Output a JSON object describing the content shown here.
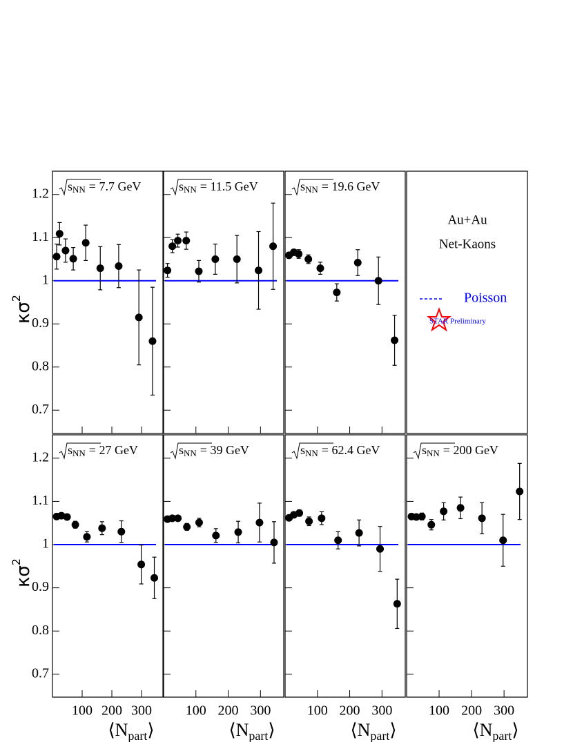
{
  "chart_data": [
    {
      "type": "scatter",
      "title": {
        "prefix": "s",
        "sub": "NN",
        "text": "= 7.7 GeV"
      },
      "ylabel": {
        "text": "κσ",
        "sup": "2"
      },
      "x": [
        14,
        24,
        44,
        70,
        112,
        161,
        223,
        291,
        337
      ],
      "values": [
        1.056,
        1.109,
        1.07,
        1.051,
        1.088,
        1.029,
        1.034,
        0.915,
        0.86
      ],
      "errors": [
        0.029,
        0.026,
        0.027,
        0.026,
        0.041,
        0.05,
        0.05,
        0.11,
        0.125
      ],
      "color": "#000000",
      "reference": 1,
      "reference_color": "#0000ff",
      "xlim": [
        0,
        372
      ],
      "ylim": [
        0.646,
        1.254
      ],
      "xticks": [
        100,
        200,
        300
      ],
      "yticks": [
        0.7,
        0.8,
        0.9,
        1,
        1.1,
        1.2
      ],
      "show_xticklabels": false,
      "show_yticklabels": true
    },
    {
      "type": "scatter",
      "title": {
        "prefix": "s",
        "sub": "NN",
        "text": "= 11.5 GeV"
      },
      "x": [
        12,
        27,
        44,
        70,
        109,
        160,
        227,
        294,
        339
      ],
      "values": [
        1.024,
        1.08,
        1.093,
        1.093,
        1.022,
        1.05,
        1.05,
        1.024,
        1.08
      ],
      "errors": [
        0.016,
        0.015,
        0.015,
        0.02,
        0.025,
        0.035,
        0.055,
        0.09,
        0.1
      ],
      "color": "#000000",
      "reference": 1,
      "reference_color": "#0000ff",
      "xlim": [
        0,
        372
      ],
      "ylim": [
        0.646,
        1.254
      ],
      "xticks": [
        100,
        200,
        300
      ],
      "yticks": [
        0.7,
        0.8,
        0.9,
        1,
        1.1,
        1.2
      ],
      "show_xticklabels": false,
      "show_yticklabels": false
    },
    {
      "type": "scatter",
      "title": {
        "prefix": "s",
        "sub": "NN",
        "text": "= 19.6 GeV"
      },
      "x": [
        12,
        27,
        42,
        72,
        109,
        160,
        225,
        289,
        339
      ],
      "values": [
        1.059,
        1.066,
        1.062,
        1.05,
        1.029,
        0.973,
        1.042,
        1.0,
        0.862
      ],
      "errors": [
        0.005,
        0.005,
        0.01,
        0.01,
        0.014,
        0.02,
        0.03,
        0.055,
        0.058
      ],
      "color": "#000000",
      "reference": 1,
      "reference_color": "#0000ff",
      "xlim": [
        0,
        372
      ],
      "ylim": [
        0.646,
        1.254
      ],
      "xticks": [
        100,
        200,
        300
      ],
      "yticks": [
        0.7,
        0.8,
        0.9,
        1,
        1.1,
        1.2
      ],
      "show_xticklabels": false,
      "show_yticklabels": false
    },
    {
      "type": "scatter",
      "title": {
        "prefix": "s",
        "sub": "NN",
        "text": "= 27 GeV"
      },
      "ylabel": {
        "text": "κσ",
        "sup": "2"
      },
      "xlabel": {
        "open": "⟨",
        "text": "N",
        "sub": "part",
        "close": "⟩"
      },
      "x": [
        14,
        30,
        49,
        77,
        116,
        167,
        232,
        299,
        343
      ],
      "values": [
        1.065,
        1.067,
        1.064,
        1.046,
        1.018,
        1.038,
        1.03,
        0.954,
        0.923
      ],
      "errors": [
        0.004,
        0.004,
        0.004,
        0.008,
        0.012,
        0.015,
        0.025,
        0.045,
        0.048
      ],
      "color": "#000000",
      "reference": 1,
      "reference_color": "#0000ff",
      "xlim": [
        0,
        372
      ],
      "ylim": [
        0.647,
        1.254
      ],
      "xticks": [
        100,
        200,
        300
      ],
      "yticks": [
        0.7,
        0.8,
        0.9,
        1,
        1.1,
        1.2
      ],
      "show_xticklabels": true,
      "show_yticklabels": true
    },
    {
      "type": "scatter",
      "title": {
        "prefix": "s",
        "sub": "NN",
        "text": "= 39 GeV"
      },
      "xlabel": {
        "open": "⟨",
        "text": "N",
        "sub": "part",
        "close": "⟩"
      },
      "x": [
        12,
        27,
        44,
        72,
        110,
        162,
        231,
        297,
        342
      ],
      "values": [
        1.059,
        1.061,
        1.061,
        1.041,
        1.051,
        1.021,
        1.029,
        1.051,
        1.005
      ],
      "errors": [
        0.004,
        0.004,
        0.004,
        0.008,
        0.01,
        0.016,
        0.025,
        0.045,
        0.048
      ],
      "color": "#000000",
      "reference": 1,
      "reference_color": "#0000ff",
      "xlim": [
        0,
        372
      ],
      "ylim": [
        0.647,
        1.254
      ],
      "xticks": [
        100,
        200,
        300
      ],
      "yticks": [
        0.7,
        0.8,
        0.9,
        1,
        1.1,
        1.2
      ],
      "show_xticklabels": true,
      "show_yticklabels": false
    },
    {
      "type": "scatter",
      "title": {
        "prefix": "s",
        "sub": "NN",
        "text": "= 62.4 GeV"
      },
      "xlabel": {
        "open": "⟨",
        "text": "N",
        "sub": "part",
        "close": "⟩"
      },
      "x": [
        12,
        27,
        44,
        74,
        113,
        164,
        229,
        294,
        347
      ],
      "values": [
        1.062,
        1.069,
        1.073,
        1.054,
        1.061,
        1.01,
        1.027,
        0.99,
        0.863
      ],
      "errors": [
        0.005,
        0.005,
        0.007,
        0.01,
        0.015,
        0.02,
        0.03,
        0.052,
        0.057
      ],
      "color": "#000000",
      "reference": 1,
      "reference_color": "#0000ff",
      "xlim": [
        0,
        372
      ],
      "ylim": [
        0.647,
        1.254
      ],
      "xticks": [
        100,
        200,
        300
      ],
      "yticks": [
        0.7,
        0.8,
        0.9,
        1,
        1.1,
        1.2
      ],
      "show_xticklabels": true,
      "show_yticklabels": false
    },
    {
      "type": "scatter",
      "title": {
        "prefix": "s",
        "sub": "NN",
        "text": "= 200 GeV"
      },
      "xlabel": {
        "open": "⟨",
        "text": "N",
        "sub": "part",
        "close": "⟩"
      },
      "x": [
        15,
        30,
        47,
        76,
        114,
        166,
        232,
        297,
        348
      ],
      "values": [
        1.065,
        1.064,
        1.065,
        1.046,
        1.077,
        1.085,
        1.061,
        1.01,
        1.123
      ],
      "errors": [
        0.004,
        0.004,
        0.008,
        0.012,
        0.02,
        0.025,
        0.036,
        0.06,
        0.065
      ],
      "color": "#000000",
      "reference": 1,
      "reference_color": "#0000ff",
      "xlim": [
        0,
        372
      ],
      "ylim": [
        0.647,
        1.254
      ],
      "xticks": [
        100,
        200,
        300
      ],
      "yticks": [
        0.7,
        0.8,
        0.9,
        1,
        1.1,
        1.2
      ],
      "show_xticklabels": true,
      "show_yticklabels": false
    }
  ],
  "legend": {
    "lines": [
      "Au+Au",
      "Net-Kaons"
    ],
    "entry": "Poisson",
    "color": "#0000ff",
    "watermark": "STAR Preliminary",
    "watermark_color": "#ff0000"
  }
}
